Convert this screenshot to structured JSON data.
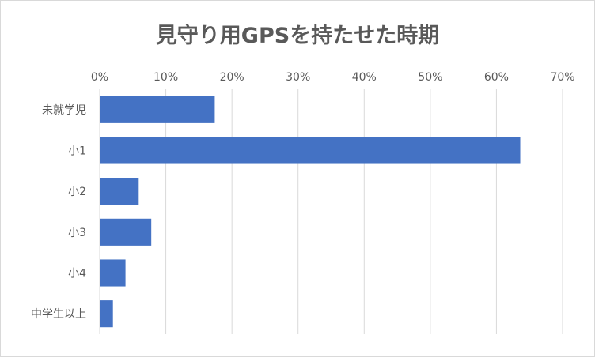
{
  "chart_data": {
    "type": "bar",
    "orientation": "horizontal",
    "title": "見守り用GPSを持たせた時期",
    "xlabel": "",
    "ylabel": "",
    "categories": [
      "未就学児",
      "小1",
      "小2",
      "小3",
      "小4",
      "中学生以上"
    ],
    "values": [
      17.4,
      63.6,
      5.9,
      7.8,
      3.9,
      2.0
    ],
    "xlim": [
      0,
      70
    ],
    "x_ticks": [
      "0%",
      "10%",
      "20%",
      "30%",
      "40%",
      "50%",
      "60%",
      "70%"
    ],
    "x_axis_position": "top",
    "grid": true,
    "legend": "none",
    "colors": {
      "bar": "#4472c4",
      "grid": "#d9d9d9",
      "text": "#595959"
    }
  }
}
